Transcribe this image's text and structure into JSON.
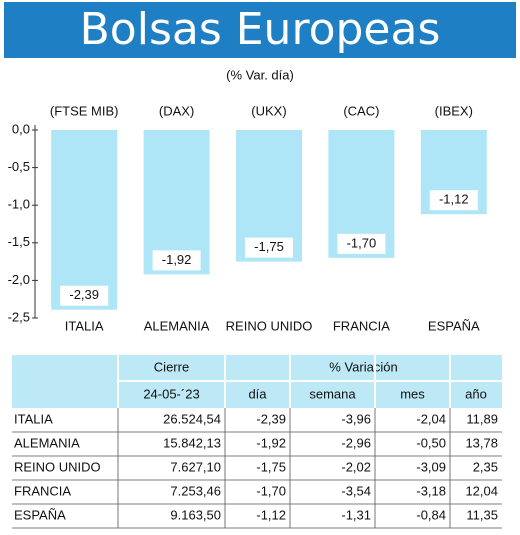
{
  "chart_data": {
    "type": "bar",
    "title": "Bolsas Europeas",
    "subtitle": "(% Var. día)",
    "categories": [
      "ITALIA",
      "ALEMANIA",
      "REINO UNIDO",
      "FRANCIA",
      "ESPAÑA"
    ],
    "indices": [
      "(FTSE MIB)",
      "(DAX)",
      "(UKX)",
      "(CAC)",
      "(IBEX)"
    ],
    "values": [
      -2.39,
      -1.92,
      -1.75,
      -1.7,
      -1.12
    ],
    "value_labels": [
      "-2,39",
      "-1,92",
      "-1,75",
      "-1,70",
      "-1,12"
    ],
    "color": "#aee6f7",
    "ylim": [
      -2.5,
      0
    ],
    "yticks": [
      {
        "value": 0,
        "label": "0,0"
      },
      {
        "value": -0.5,
        "label": "-0,5"
      },
      {
        "value": -1,
        "label": "-1,0"
      },
      {
        "value": -1.5,
        "label": "-1,5"
      },
      {
        "value": -2,
        "label": "-2,0"
      },
      {
        "value": -2.5,
        "label": "-2,5"
      }
    ]
  },
  "table": {
    "header": [
      "Cierre",
      "% Variación"
    ],
    "subheader": [
      "24-05-´23",
      "día",
      "semana",
      "mes",
      "año"
    ],
    "rows": [
      [
        "ITALIA",
        "26.524,54",
        "-2,39",
        "-3,96",
        "-2,04",
        "11,89"
      ],
      [
        "ALEMANIA",
        "15.842,13",
        "-1,92",
        "-2,96",
        "-0,50",
        "13,78"
      ],
      [
        "REINO UNIDO",
        "7.627,10",
        "-1,75",
        "-2,02",
        "-3,09",
        "2,35"
      ],
      [
        "FRANCIA",
        "7.253,46",
        "-1,70",
        "-3,54",
        "-3,18",
        "12,04"
      ],
      [
        "ESPAÑA",
        "9.163,50",
        "-1,12",
        "-1,31",
        "-0,84",
        "11,35"
      ]
    ]
  }
}
